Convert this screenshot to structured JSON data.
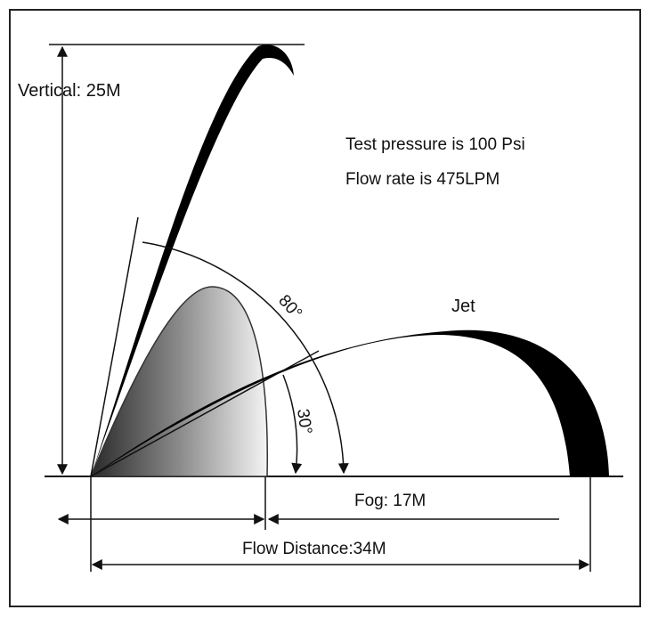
{
  "labels": {
    "vertical": "Vertical: 25M",
    "test_pressure": "Test pressure is 100 Psi",
    "flow_rate": "Flow rate is 475LPM",
    "angle_high": "80°",
    "angle_low": "30°",
    "jet": "Jet",
    "fog": "Fog: 17M",
    "flow_distance": "Flow Distance:34M"
  },
  "colors": {
    "stroke": "#111111",
    "jet_fill": "#000000",
    "fog_dark": "#2a2a2a",
    "fog_light": "#f4f4f4",
    "frame": "#222222"
  }
}
